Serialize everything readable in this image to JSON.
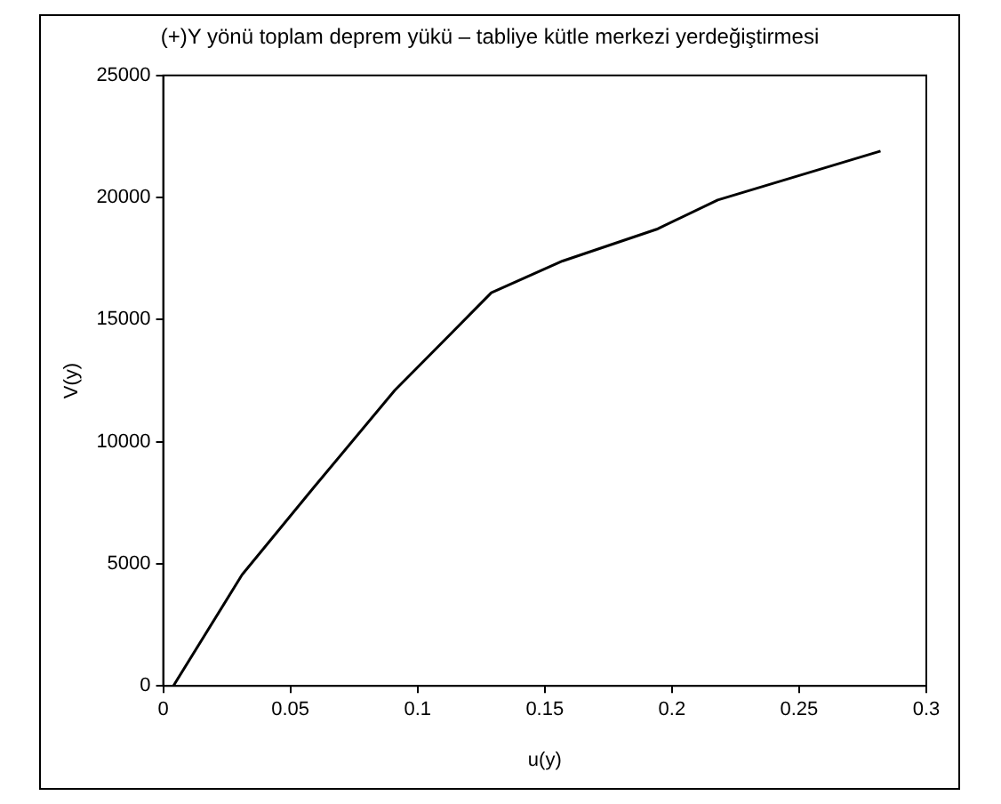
{
  "chart_data": {
    "type": "line",
    "title": "(+)Y yönü toplam deprem yükü – tabliye kütle merkezi yerdeğiştirmesi",
    "xlabel": "u(y)",
    "ylabel": "V(y)",
    "x": [
      0.004,
      0.031,
      0.059,
      0.091,
      0.129,
      0.157,
      0.194,
      0.218,
      0.282
    ],
    "series": [
      {
        "color": "#000000",
        "values": [
          0,
          4550,
          8100,
          12100,
          16100,
          17400,
          18700,
          19900,
          21900
        ]
      }
    ],
    "xlim": [
      0,
      0.3
    ],
    "xticks": [
      0,
      0.05,
      0.1,
      0.15,
      0.2,
      0.25,
      0.3
    ],
    "ylim": [
      0,
      25000
    ],
    "yticks": [
      0,
      5000,
      10000,
      15000,
      20000,
      25000
    ],
    "grid": false,
    "legend": false,
    "marker": "none",
    "line_style": "solid"
  }
}
